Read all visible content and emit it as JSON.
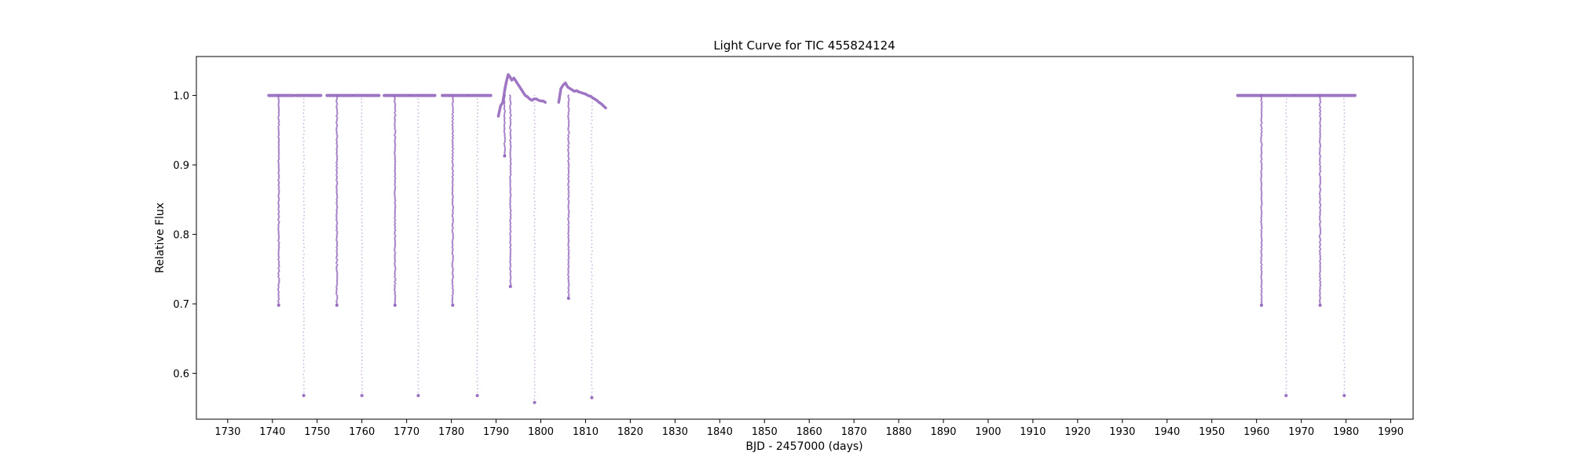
{
  "chart_data": {
    "type": "scatter",
    "title": "Light Curve for TIC 455824124",
    "xlabel": "BJD - 2457000 (days)",
    "ylabel": "Relative Flux",
    "xlim": [
      1723,
      1995
    ],
    "ylim": [
      0.534,
      1.056
    ],
    "xticks": [
      1730,
      1740,
      1750,
      1760,
      1770,
      1780,
      1790,
      1800,
      1810,
      1820,
      1830,
      1840,
      1850,
      1860,
      1870,
      1880,
      1890,
      1900,
      1910,
      1920,
      1930,
      1940,
      1950,
      1960,
      1970,
      1980,
      1990
    ],
    "yticks": [
      0.6,
      0.7,
      0.8,
      0.9,
      1.0
    ],
    "color": "#9467bd",
    "grid": false,
    "baseline_segments": [
      {
        "x": [
          1739.2,
          1744.8
        ],
        "y": [
          1.0,
          1.0
        ]
      },
      {
        "x": [
          1745.3,
          1750.8
        ],
        "y": [
          1.0,
          1.0
        ]
      },
      {
        "x": [
          1752.2,
          1757.8
        ],
        "y": [
          1.0,
          1.0
        ]
      },
      {
        "x": [
          1758.2,
          1763.8
        ],
        "y": [
          1.0,
          1.0
        ]
      },
      {
        "x": [
          1765.0,
          1770.5
        ],
        "y": [
          1.0,
          1.0
        ]
      },
      {
        "x": [
          1770.8,
          1776.3
        ],
        "y": [
          1.0,
          1.0
        ]
      },
      {
        "x": [
          1778.0,
          1783.5
        ],
        "y": [
          1.0,
          1.0
        ]
      },
      {
        "x": [
          1783.8,
          1788.8
        ],
        "y": [
          1.0,
          1.0
        ]
      },
      {
        "x": [
          1955.8,
          1961.0
        ],
        "y": [
          1.0,
          1.0
        ]
      },
      {
        "x": [
          1961.2,
          1968.2
        ],
        "y": [
          1.0,
          1.0
        ]
      },
      {
        "x": [
          1968.5,
          1974.0
        ],
        "y": [
          1.0,
          1.0
        ]
      },
      {
        "x": [
          1974.3,
          1982.0
        ],
        "y": [
          1.0,
          1.0
        ]
      }
    ],
    "curved_segments": [
      {
        "x": [
          1790.5,
          1791.0,
          1791.5,
          1792.0,
          1792.3,
          1792.7,
          1793.0,
          1793.5,
          1794.0,
          1794.5,
          1795.0,
          1795.5,
          1796.0,
          1796.5,
          1797.0,
          1797.5,
          1798.0,
          1798.5,
          1799.0,
          1799.5,
          1800.0,
          1800.5,
          1801.0
        ],
        "y": [
          0.97,
          0.985,
          0.99,
          1.01,
          1.02,
          1.03,
          1.028,
          1.022,
          1.025,
          1.02,
          1.015,
          1.01,
          1.005,
          1.0,
          0.998,
          0.995,
          0.993,
          0.995,
          0.995,
          0.993,
          0.992,
          0.992,
          0.99
        ]
      },
      {
        "x": [
          1804.0,
          1804.5,
          1805.0,
          1805.5,
          1806.0,
          1806.5,
          1807.0,
          1807.5,
          1808.0,
          1808.5,
          1809.0,
          1809.5,
          1810.0,
          1810.5,
          1811.0,
          1811.5,
          1812.0,
          1812.5,
          1813.0,
          1813.5,
          1814.0,
          1814.5
        ],
        "y": [
          0.99,
          1.01,
          1.015,
          1.018,
          1.012,
          1.01,
          1.008,
          1.006,
          1.007,
          1.005,
          1.004,
          1.003,
          1.002,
          1.0,
          0.999,
          0.997,
          0.995,
          0.993,
          0.99,
          0.988,
          0.985,
          0.982
        ]
      }
    ],
    "dips": [
      {
        "x": 1741.4,
        "min": 0.698,
        "dense": true
      },
      {
        "x": 1747.0,
        "min": 0.568,
        "dense": false
      },
      {
        "x": 1754.4,
        "min": 0.698,
        "dense": true
      },
      {
        "x": 1760.0,
        "min": 0.568,
        "dense": false
      },
      {
        "x": 1767.4,
        "min": 0.698,
        "dense": true
      },
      {
        "x": 1772.6,
        "min": 0.568,
        "dense": false
      },
      {
        "x": 1780.3,
        "min": 0.698,
        "dense": true
      },
      {
        "x": 1785.8,
        "min": 0.568,
        "dense": false
      },
      {
        "x": 1791.9,
        "min": 0.913,
        "dense": true
      },
      {
        "x": 1793.2,
        "min": 0.725,
        "dense": true
      },
      {
        "x": 1798.6,
        "min": 0.558,
        "dense": false
      },
      {
        "x": 1806.2,
        "min": 0.708,
        "dense": true
      },
      {
        "x": 1811.4,
        "min": 0.565,
        "dense": false
      },
      {
        "x": 1961.1,
        "min": 0.698,
        "dense": true
      },
      {
        "x": 1966.6,
        "min": 0.568,
        "dense": false
      },
      {
        "x": 1974.2,
        "min": 0.698,
        "dense": true
      },
      {
        "x": 1979.6,
        "min": 0.568,
        "dense": false
      }
    ]
  }
}
